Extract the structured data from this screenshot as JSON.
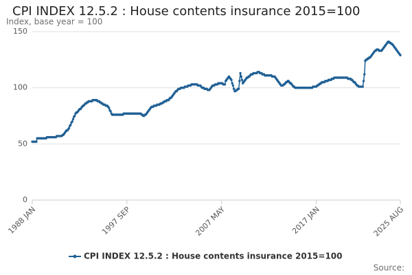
{
  "chart_data": {
    "type": "line",
    "title": "CPI INDEX 12.5.2 : House contents insurance 2015=100",
    "y_label": "Index, base year = 100",
    "source_label": "Source:",
    "legend": "bottom",
    "grid": true,
    "ylim": [
      0,
      150
    ],
    "yticks": [
      0,
      50,
      100,
      150
    ],
    "categories": [
      "1988 JAN",
      null,
      null,
      null,
      null,
      null,
      null,
      null,
      null,
      null,
      null,
      null,
      null,
      null,
      null,
      null,
      null,
      null,
      null,
      null,
      null,
      null,
      null,
      null,
      null,
      null,
      null,
      null,
      null,
      null,
      null,
      null,
      null,
      null,
      null,
      null,
      null,
      null,
      null,
      null,
      null,
      null,
      null,
      null,
      null,
      null,
      null,
      null,
      null,
      null,
      null,
      null,
      null,
      null,
      null,
      null,
      null,
      null,
      null,
      null,
      null,
      null,
      null,
      null,
      null,
      null,
      null,
      null,
      null,
      null,
      null,
      null,
      null,
      null,
      null,
      null,
      null,
      null,
      null,
      null,
      null,
      null,
      null,
      null,
      null,
      null,
      null,
      null,
      null,
      null,
      null,
      null,
      null,
      null,
      null,
      null,
      null,
      null,
      null,
      null,
      null,
      null,
      null,
      null,
      null,
      null,
      null,
      null,
      null,
      null,
      null,
      null,
      null,
      null,
      null,
      null,
      "1997 SEP",
      null,
      null,
      null,
      null,
      null,
      null,
      null,
      null,
      null,
      null,
      null,
      null,
      null,
      null,
      null,
      null,
      null,
      null,
      null,
      null,
      null,
      null,
      null,
      null,
      null,
      null,
      null,
      null,
      null,
      null,
      null,
      null,
      null,
      null,
      null,
      null,
      null,
      null,
      null,
      null,
      null,
      null,
      null,
      null,
      null,
      null,
      null,
      null,
      null,
      null,
      null,
      null,
      null,
      null,
      null,
      null,
      null,
      null,
      null,
      null,
      null,
      null,
      null,
      null,
      null,
      null,
      null,
      null,
      null,
      null,
      null,
      null,
      null,
      null,
      null,
      null,
      null,
      null,
      null,
      null,
      null,
      null,
      null,
      null,
      null,
      null,
      null,
      null,
      null,
      null,
      null,
      null,
      null,
      null,
      null,
      null,
      null,
      null,
      null,
      null,
      null,
      null,
      null,
      null,
      null,
      null,
      null,
      null,
      null,
      null,
      null,
      null,
      null,
      null,
      null,
      "2007 MAY",
      null,
      null,
      null,
      null,
      null,
      null,
      null,
      null,
      null,
      null,
      null,
      null,
      null,
      null,
      null,
      null,
      null,
      null,
      null,
      null,
      null,
      null,
      null,
      null,
      null,
      null,
      null,
      null,
      null,
      null,
      null,
      null,
      null,
      null,
      null,
      null,
      null,
      null,
      null,
      null,
      null,
      null,
      null,
      null,
      null,
      null,
      null,
      null,
      null,
      null,
      null,
      null,
      null,
      null,
      null,
      null,
      null,
      null,
      null,
      null,
      null,
      null,
      null,
      null,
      null,
      null,
      null,
      null,
      null,
      null,
      null,
      null,
      null,
      null,
      null,
      null,
      null,
      null,
      null,
      null,
      null,
      null,
      null,
      null,
      null,
      null,
      null,
      null,
      null,
      null,
      null,
      null,
      null,
      null,
      null,
      null,
      null,
      null,
      null,
      null,
      null,
      null,
      null,
      null,
      null,
      null,
      null,
      null,
      null,
      null,
      null,
      null,
      null,
      null,
      null,
      "2017 JAN",
      null,
      null,
      null,
      null,
      null,
      null,
      null,
      null,
      null,
      null,
      null,
      null,
      null,
      null,
      null,
      null,
      null,
      null,
      null,
      null,
      null,
      null,
      null,
      null,
      null,
      null,
      null,
      null,
      null,
      null,
      null,
      null,
      null,
      null,
      null,
      null,
      null,
      null,
      null,
      null,
      null,
      null,
      null,
      null,
      null,
      null,
      null,
      null,
      null,
      null,
      null,
      null,
      null,
      null,
      null,
      null,
      null,
      null,
      null,
      null,
      null,
      null,
      null,
      null,
      null,
      null,
      null,
      null,
      null,
      null,
      null,
      null,
      null,
      null,
      null,
      null,
      null,
      null,
      null,
      null,
      null,
      null,
      null,
      null,
      null,
      null,
      null,
      null,
      null,
      null,
      null,
      null,
      null,
      null,
      null,
      null,
      null,
      null,
      null,
      null,
      null,
      null,
      "2025 AUG"
    ],
    "series": [
      {
        "name": "CPI INDEX 12.5.2 : House contents insurance 2015=100",
        "color": "#206095",
        "values": [
          52,
          52,
          52,
          52,
          52,
          52,
          55,
          55,
          55,
          55,
          55,
          55,
          55,
          55,
          55,
          55,
          55,
          55,
          56,
          56,
          56,
          56,
          56,
          56,
          56,
          56,
          56,
          56,
          56,
          56,
          57,
          57,
          57,
          57,
          57,
          57,
          57,
          58,
          58,
          59,
          60,
          61,
          62,
          62,
          63,
          64,
          66,
          67,
          69,
          70,
          72,
          74,
          75,
          77,
          78,
          78,
          79,
          80,
          81,
          81,
          82,
          83,
          84,
          84,
          85,
          86,
          86,
          87,
          87,
          88,
          88,
          88,
          88,
          88,
          89,
          89,
          89,
          89,
          89,
          89,
          88,
          88,
          88,
          87,
          87,
          86,
          86,
          85,
          85,
          85,
          84,
          84,
          84,
          83,
          82,
          80,
          79,
          77,
          76,
          76,
          76,
          76,
          76,
          76,
          76,
          76,
          76,
          76,
          76,
          76,
          76,
          76,
          77,
          77,
          77,
          77,
          77,
          77,
          77,
          77,
          77,
          77,
          77,
          77,
          77,
          77,
          77,
          77,
          77,
          77,
          77,
          77,
          77,
          77,
          76,
          76,
          75,
          75,
          76,
          76,
          77,
          78,
          79,
          80,
          81,
          82,
          83,
          83,
          83,
          84,
          84,
          84,
          84,
          85,
          85,
          85,
          85,
          86,
          86,
          86,
          87,
          87,
          88,
          88,
          88,
          89,
          89,
          89,
          90,
          91,
          91,
          92,
          93,
          94,
          95,
          96,
          97,
          97,
          98,
          99,
          99,
          99,
          100,
          100,
          100,
          100,
          100,
          101,
          101,
          101,
          101,
          102,
          102,
          102,
          102,
          103,
          103,
          103,
          103,
          103,
          103,
          103,
          103,
          102,
          102,
          102,
          102,
          101,
          100,
          100,
          100,
          99,
          99,
          99,
          99,
          98,
          98,
          98,
          99,
          100,
          101,
          102,
          102,
          102,
          103,
          103,
          103,
          103,
          104,
          104,
          104,
          104,
          104,
          104,
          103,
          103,
          103,
          106,
          107,
          108,
          109,
          110,
          109,
          108,
          107,
          104,
          102,
          99,
          97,
          97,
          98,
          98,
          99,
          99,
          106,
          113,
          110,
          107,
          104,
          105,
          106,
          107,
          108,
          109,
          109,
          110,
          110,
          111,
          112,
          112,
          112,
          113,
          113,
          113,
          113,
          113,
          114,
          114,
          114,
          113,
          113,
          113,
          112,
          112,
          112,
          111,
          111,
          111,
          111,
          111,
          111,
          111,
          111,
          111,
          110,
          110,
          110,
          110,
          109,
          108,
          107,
          106,
          105,
          104,
          103,
          102,
          102,
          102,
          103,
          103,
          104,
          105,
          105,
          106,
          106,
          105,
          104,
          104,
          103,
          102,
          101,
          101,
          100,
          100,
          100,
          100,
          100,
          100,
          100,
          100,
          100,
          100,
          100,
          100,
          100,
          100,
          100,
          100,
          100,
          100,
          100,
          100,
          100,
          100,
          101,
          101,
          101,
          101,
          101,
          102,
          102,
          103,
          103,
          104,
          104,
          105,
          105,
          105,
          105,
          106,
          106,
          106,
          106,
          107,
          107,
          107,
          107,
          108,
          108,
          108,
          109,
          109,
          109,
          109,
          109,
          109,
          109,
          109,
          109,
          109,
          109,
          109,
          109,
          109,
          109,
          109,
          109,
          108,
          108,
          108,
          108,
          107,
          107,
          106,
          105,
          105,
          104,
          103,
          102,
          102,
          101,
          101,
          101,
          101,
          101,
          101,
          106,
          112,
          124,
          125,
          125,
          126,
          126,
          127,
          127,
          128,
          129,
          130,
          131,
          132,
          133,
          133,
          134,
          134,
          134,
          133,
          133,
          133,
          133,
          134,
          135,
          136,
          137,
          138,
          139,
          140,
          141,
          141,
          140,
          140,
          139,
          139,
          138,
          137,
          136,
          135,
          134,
          133,
          132,
          131,
          130,
          129
        ]
      }
    ]
  }
}
